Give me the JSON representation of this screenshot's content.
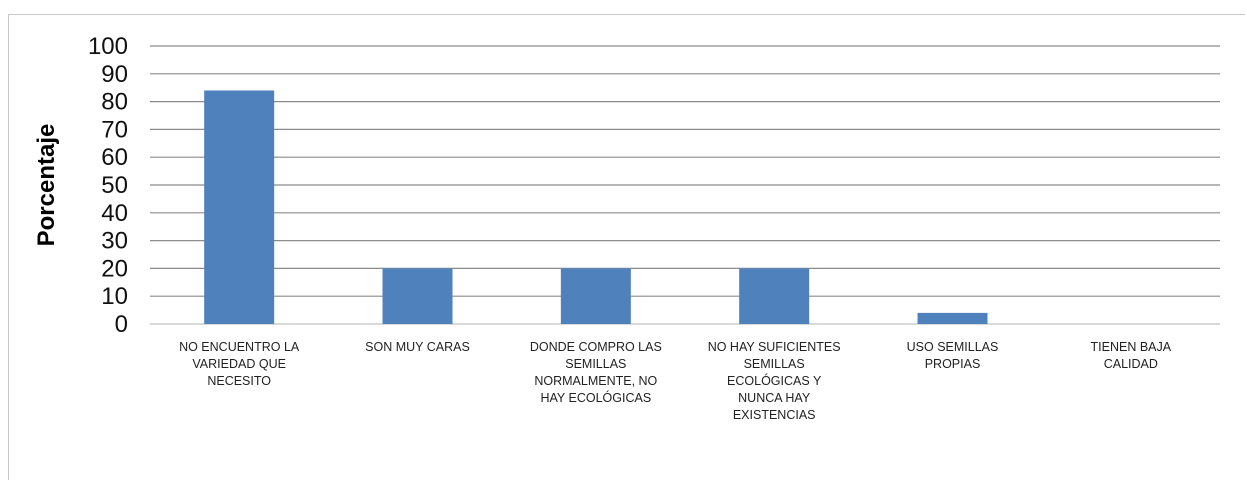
{
  "chart_data": {
    "type": "bar",
    "ylabel": "Porcentaje",
    "ylim": [
      0,
      100
    ],
    "y_ticks": [
      "0",
      "10",
      "20",
      "30",
      "40",
      "50",
      "60",
      "70",
      "80",
      "90",
      "100"
    ],
    "grid": true,
    "legend": "none",
    "bar_color": "#4f81bd",
    "categories": [
      {
        "lines": [
          "NO ENCUENTRO LA",
          "VARIEDAD QUE",
          "NECESITO"
        ]
      },
      {
        "lines": [
          "SON MUY CARAS"
        ]
      },
      {
        "lines": [
          "DONDE COMPRO LAS",
          "SEMILLAS",
          "NORMALMENTE, NO",
          "HAY ECOLÓGICAS"
        ]
      },
      {
        "lines": [
          "NO HAY SUFICIENTES",
          "SEMILLAS",
          "ECOLÓGICAS Y",
          "NUNCA HAY",
          "EXISTENCIAS"
        ]
      },
      {
        "lines": [
          "USO SEMILLAS",
          "PROPIAS"
        ]
      },
      {
        "lines": [
          "TIENEN BAJA",
          "CALIDAD"
        ]
      }
    ],
    "values": [
      84,
      20,
      20,
      20,
      4,
      0
    ]
  }
}
